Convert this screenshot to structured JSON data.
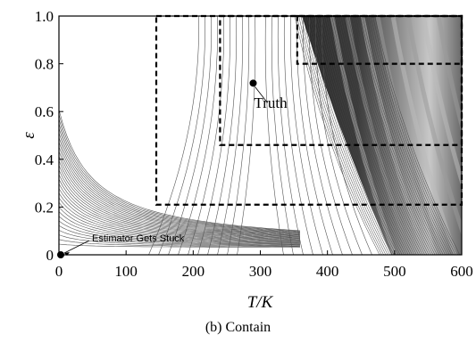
{
  "chart_data": {
    "type": "contour",
    "xlabel": "T/K",
    "ylabel": "ε",
    "xlim": [
      0,
      600
    ],
    "ylim": [
      0,
      1.0
    ],
    "x_ticks": [
      "0",
      "100",
      "200",
      "300",
      "400",
      "500",
      "600"
    ],
    "y_ticks": [
      "0",
      "0.2",
      "0.4",
      "0.6",
      "0.8",
      "1.0"
    ],
    "points": [
      {
        "label": "Truth",
        "x": 300,
        "y": 0.76
      },
      {
        "label": "Estimator Gets Stuck",
        "x": 0,
        "y": 0.0
      }
    ],
    "regions": [
      {
        "style": "dashed",
        "x": [
          145,
          600
        ],
        "y": [
          0.21,
          1.0
        ]
      },
      {
        "style": "dashed",
        "x": [
          240,
          600
        ],
        "y": [
          0.46,
          1.0
        ]
      },
      {
        "style": "dashed",
        "x": [
          355,
          600
        ],
        "y": [
          0.8,
          1.0
        ]
      }
    ],
    "caption": "(b) Contain"
  }
}
